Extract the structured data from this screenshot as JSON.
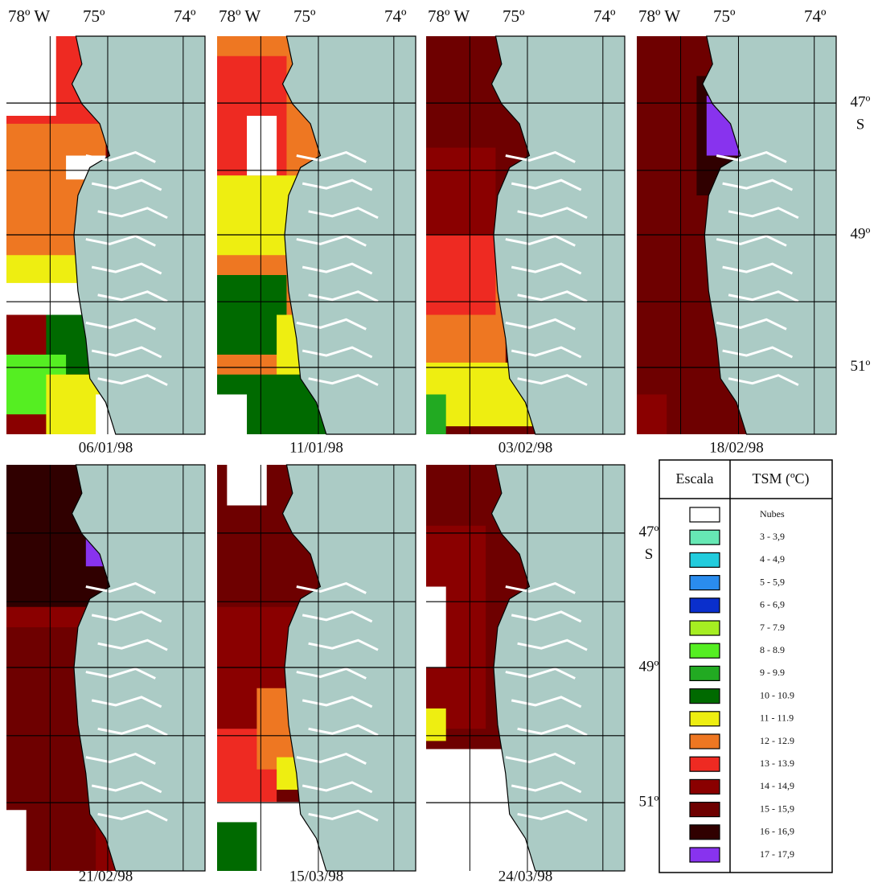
{
  "longitude_labels": [
    "78º W",
    "75º",
    "74º"
  ],
  "latitude_labels": [
    "47º",
    "S",
    "49º",
    "51º"
  ],
  "panels": [
    {
      "date": "06/01/98"
    },
    {
      "date": "11/01/98"
    },
    {
      "date": "03/02/98"
    },
    {
      "date": "18/02/98"
    },
    {
      "date": "21/02/98"
    },
    {
      "date": "15/03/98"
    },
    {
      "date": "24/03/98"
    }
  ],
  "legend": {
    "headers": [
      "Escala",
      "TSM (ºC)"
    ],
    "entries": [
      {
        "label": "Nubes",
        "color": "#ffffff"
      },
      {
        "label": "3 - 3,9",
        "color": "#66e8b4"
      },
      {
        "label": "4 - 4,9",
        "color": "#22ccdd"
      },
      {
        "label": "5 - 5,9",
        "color": "#2a8cee"
      },
      {
        "label": "6 - 6,9",
        "color": "#0a2fcc"
      },
      {
        "label": "7 - 7.9",
        "color": "#a6ee22"
      },
      {
        "label": "8 - 8.9",
        "color": "#55ee22"
      },
      {
        "label": "9 - 9.9",
        "color": "#22aa22"
      },
      {
        "label": "10 - 10.9",
        "color": "#006a00"
      },
      {
        "label": "11 - 11.9",
        "color": "#eeee11"
      },
      {
        "label": "12 - 12.9",
        "color": "#ee7722"
      },
      {
        "label": "13 - 13.9",
        "color": "#ee2a22"
      },
      {
        "label": "14 - 14,9",
        "color": "#8a0000"
      },
      {
        "label": "15 - 15,9",
        "color": "#6e0000"
      },
      {
        "label": "16 - 16,9",
        "color": "#300000"
      },
      {
        "label": "17 - 17,9",
        "color": "#8833ee"
      }
    ]
  }
}
